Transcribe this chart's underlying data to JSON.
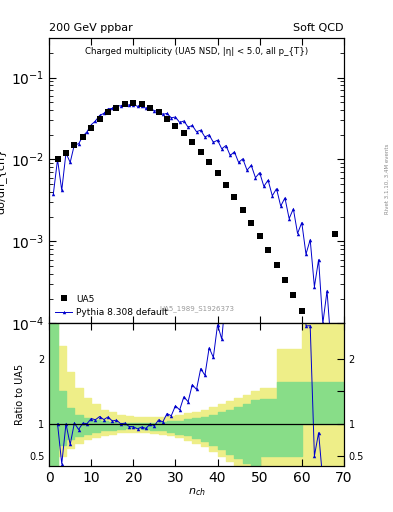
{
  "title_left": "200 GeV ppbar",
  "title_right": "Soft QCD",
  "plot_title": "Charged multiplicity (UA5 NSD, |η| < 5.0, all p_{T})",
  "ylabel_main": "dσ/dn_{ch}",
  "ylabel_ratio": "Ratio to UA5",
  "xlabel": "n_{ch}",
  "right_label": "Rivet 3.1.10, 3.4M events",
  "watermark": "UA5_1989_S1926373",
  "ua5_x": [
    2,
    4,
    6,
    8,
    10,
    12,
    14,
    16,
    18,
    20,
    22,
    24,
    26,
    28,
    30,
    32,
    34,
    36,
    38,
    40,
    42,
    44,
    46,
    48,
    50,
    52,
    54,
    56,
    58,
    60,
    68
  ],
  "ua5_y": [
    0.01,
    0.012,
    0.015,
    0.019,
    0.0245,
    0.031,
    0.0375,
    0.043,
    0.047,
    0.049,
    0.0475,
    0.043,
    0.0375,
    0.0315,
    0.0258,
    0.0208,
    0.0162,
    0.0123,
    0.0092,
    0.0068,
    0.0049,
    0.0035,
    0.00245,
    0.0017,
    0.00115,
    0.00078,
    0.00052,
    0.00034,
    0.00022,
    0.00014,
    0.00125
  ],
  "pythia_x": [
    1,
    2,
    3,
    4,
    5,
    6,
    7,
    8,
    9,
    10,
    11,
    12,
    13,
    14,
    15,
    16,
    17,
    18,
    19,
    20,
    21,
    22,
    23,
    24,
    25,
    26,
    27,
    28,
    29,
    30,
    31,
    32,
    33,
    34,
    35,
    36,
    37,
    38,
    39,
    40,
    41,
    42,
    43,
    44,
    45,
    46,
    47,
    48,
    49,
    50,
    51,
    52,
    53,
    54,
    55,
    56,
    57,
    58,
    59,
    60,
    61,
    62,
    63,
    64,
    65,
    66,
    67
  ],
  "pythia_y": [
    0.0038,
    0.01,
    0.0042,
    0.012,
    0.0092,
    0.0152,
    0.0155,
    0.0192,
    0.0218,
    0.0265,
    0.0295,
    0.0345,
    0.0365,
    0.0415,
    0.042,
    0.0455,
    0.045,
    0.0475,
    0.046,
    0.0468,
    0.0445,
    0.0452,
    0.042,
    0.043,
    0.039,
    0.0398,
    0.0355,
    0.0365,
    0.0322,
    0.033,
    0.0283,
    0.0295,
    0.0248,
    0.026,
    0.0218,
    0.0228,
    0.0188,
    0.02,
    0.0162,
    0.0172,
    0.0135,
    0.0148,
    0.0112,
    0.0124,
    0.0092,
    0.0102,
    0.0074,
    0.0085,
    0.006,
    0.0069,
    0.0047,
    0.0056,
    0.0036,
    0.0044,
    0.0027,
    0.0034,
    0.0019,
    0.0025,
    0.00125,
    0.0017,
    0.0007,
    0.00105,
    0.00028,
    0.0006,
    0.0001,
    0.00025,
    5e-05
  ],
  "ua5_color": "#000000",
  "pythia_color": "#0000cc",
  "green_band_color": "#88dd88",
  "yellow_band_color": "#eeee88",
  "background_color": "#ffffff",
  "xlim": [
    0,
    70
  ],
  "ylim_main_lo": 0.0001,
  "ylim_main_hi": 0.3,
  "ylim_ratio_lo": 0.35,
  "ylim_ratio_hi": 2.55
}
